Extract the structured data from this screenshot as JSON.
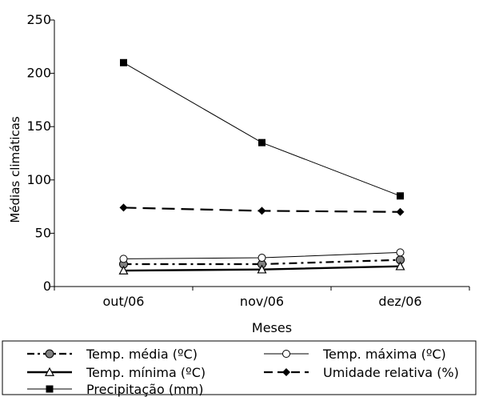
{
  "chart_data": {
    "type": "line",
    "xlabel": "Meses",
    "ylabel": "Médias climáticas",
    "categories": [
      "out/06",
      "nov/06",
      "dez/06"
    ],
    "ylim": [
      0,
      250
    ],
    "yticks": [
      "0",
      "50",
      "100",
      "150",
      "200",
      "250"
    ],
    "grid": false,
    "legend_position": "bottom",
    "series": [
      {
        "name": "Temp. média (ºC)",
        "values": [
          21,
          21,
          25
        ],
        "line": "dashdot",
        "marker": "circle-filled",
        "color": "#000000"
      },
      {
        "name": "Temp. máxima (ºC)",
        "values": [
          26,
          27,
          32
        ],
        "line": "thin",
        "marker": "circle-open",
        "color": "#000000"
      },
      {
        "name": "Temp. mínima (ºC)",
        "values": [
          15,
          16,
          19
        ],
        "line": "thick",
        "marker": "triangle-open",
        "color": "#000000"
      },
      {
        "name": "Umidade relativa (%)",
        "values": [
          74,
          71,
          70
        ],
        "line": "dashed",
        "marker": "diamond-filled",
        "color": "#000000"
      },
      {
        "name": "Precipitação (mm)",
        "values": [
          210,
          135,
          85
        ],
        "line": "thin",
        "marker": "square-filled",
        "color": "#000000"
      }
    ]
  }
}
